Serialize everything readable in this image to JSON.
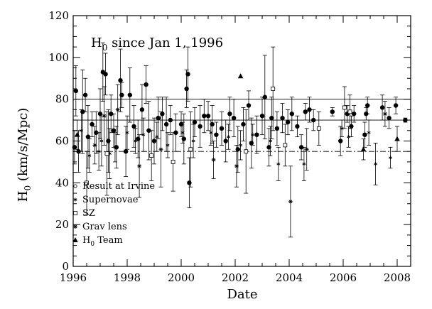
{
  "chart_data": {
    "type": "scatter",
    "title_prefix": "H",
    "title_sub": "0",
    "title_suffix": " since Jan 1, 1996",
    "xlabel": "Date",
    "ylabel_prefix": "H",
    "ylabel_sub": "0",
    "ylabel_suffix": " (km/s/Mpc)",
    "xlim": [
      1996,
      2008.5
    ],
    "ylim": [
      0,
      120
    ],
    "x_ticks": [
      1996,
      1998,
      2000,
      2002,
      2004,
      2006,
      2008
    ],
    "x_tick_labels": [
      "1996",
      "1998",
      "2000",
      "2002",
      "2004",
      "2006",
      "2008"
    ],
    "y_ticks": [
      0,
      20,
      40,
      60,
      80,
      100,
      120
    ],
    "y_tick_labels": [
      "0",
      "20",
      "40",
      "60",
      "80",
      "100",
      "120"
    ],
    "reference_lines": [
      {
        "style": "solid",
        "y": [
          80,
          80
        ]
      },
      {
        "style": "solid",
        "y": [
          70,
          70
        ]
      },
      {
        "style": "dashdot",
        "y": [
          55,
          55
        ]
      }
    ],
    "legend_position": "lower-left",
    "legend": [
      {
        "marker": "open-circle",
        "label": "Result at Irvine"
      },
      {
        "marker": "asterisk",
        "label": "Supernovae"
      },
      {
        "marker": "open-square",
        "label": "SZ"
      },
      {
        "marker": "star",
        "label": "Grav lens"
      },
      {
        "marker": "triangle",
        "label_prefix": "H",
        "label_sub": "0",
        "label_suffix": " Team"
      }
    ],
    "series": [
      {
        "marker": "filled-circle",
        "points": [
          {
            "x": 1996.05,
            "y": 57,
            "err": 8
          },
          {
            "x": 1996.1,
            "y": 84,
            "err": 12
          },
          {
            "x": 1996.2,
            "y": 55,
            "err": 10
          },
          {
            "x": 1996.35,
            "y": 74,
            "err": 20
          },
          {
            "x": 1996.45,
            "y": 82,
            "err": 8
          },
          {
            "x": 1996.55,
            "y": 62,
            "err": 15
          },
          {
            "x": 1996.7,
            "y": 68,
            "err": 6
          },
          {
            "x": 1996.85,
            "y": 64,
            "err": 10
          },
          {
            "x": 1997.0,
            "y": 73,
            "err": 12
          },
          {
            "x": 1997.1,
            "y": 93,
            "err": 14
          },
          {
            "x": 1997.2,
            "y": 92,
            "err": 10
          },
          {
            "x": 1997.3,
            "y": 60,
            "err": 15
          },
          {
            "x": 1997.4,
            "y": 73,
            "err": 9
          },
          {
            "x": 1997.5,
            "y": 65,
            "err": 8
          },
          {
            "x": 1997.6,
            "y": 57,
            "err": 10
          },
          {
            "x": 1997.75,
            "y": 89,
            "err": 15
          },
          {
            "x": 1997.8,
            "y": 82,
            "err": 6
          },
          {
            "x": 1997.95,
            "y": 55,
            "err": 12
          },
          {
            "x": 1998.1,
            "y": 82,
            "err": 13
          },
          {
            "x": 1998.25,
            "y": 67,
            "err": 10
          },
          {
            "x": 1998.4,
            "y": 61,
            "err": 9
          },
          {
            "x": 1998.55,
            "y": 75,
            "err": 12
          },
          {
            "x": 1998.7,
            "y": 87,
            "err": 9
          },
          {
            "x": 1998.8,
            "y": 65,
            "err": 14
          },
          {
            "x": 1999.0,
            "y": 60,
            "err": 11
          },
          {
            "x": 1999.15,
            "y": 71,
            "err": 10
          },
          {
            "x": 1999.3,
            "y": 73,
            "err": 8
          },
          {
            "x": 1999.45,
            "y": 68,
            "err": 13
          },
          {
            "x": 1999.6,
            "y": 70,
            "err": 7
          },
          {
            "x": 1999.8,
            "y": 64,
            "err": 9
          },
          {
            "x": 2000.0,
            "y": 68,
            "err": 6
          },
          {
            "x": 2000.1,
            "y": 61,
            "err": 12
          },
          {
            "x": 2000.2,
            "y": 85,
            "err": 9
          },
          {
            "x": 2000.25,
            "y": 92,
            "err": 13
          },
          {
            "x": 2000.3,
            "y": 40,
            "err": 12
          },
          {
            "x": 2000.5,
            "y": 69,
            "err": 7
          },
          {
            "x": 2000.7,
            "y": 67,
            "err": 10
          },
          {
            "x": 2000.85,
            "y": 72,
            "err": 8
          },
          {
            "x": 2001.0,
            "y": 72,
            "err": 7
          },
          {
            "x": 2001.15,
            "y": 68,
            "err": 9
          },
          {
            "x": 2001.3,
            "y": 63,
            "err": 6
          },
          {
            "x": 2001.5,
            "y": 66,
            "err": 8
          },
          {
            "x": 2001.65,
            "y": 60,
            "err": 10
          },
          {
            "x": 2001.8,
            "y": 73,
            "err": 8
          },
          {
            "x": 2001.95,
            "y": 71,
            "err": 9
          },
          {
            "x": 2002.1,
            "y": 56,
            "err": 11
          },
          {
            "x": 2002.3,
            "y": 68,
            "err": 8
          },
          {
            "x": 2002.5,
            "y": 77,
            "err": 7
          },
          {
            "x": 2002.6,
            "y": 59,
            "err": 12
          },
          {
            "x": 2002.8,
            "y": 63,
            "err": 9
          },
          {
            "x": 2003.0,
            "y": 72,
            "err": 9
          },
          {
            "x": 2003.1,
            "y": 81,
            "err": 20
          },
          {
            "x": 2003.25,
            "y": 57,
            "err": 9
          },
          {
            "x": 2003.35,
            "y": 71,
            "err": 10
          },
          {
            "x": 2003.55,
            "y": 66,
            "err": 8
          },
          {
            "x": 2003.75,
            "y": 71,
            "err": 7
          },
          {
            "x": 2003.95,
            "y": 69,
            "err": 6
          },
          {
            "x": 2004.1,
            "y": 73,
            "err": 8
          },
          {
            "x": 2004.3,
            "y": 67,
            "err": 5
          },
          {
            "x": 2004.45,
            "y": 57,
            "err": 6
          },
          {
            "x": 2004.6,
            "y": 74,
            "err": 4
          },
          {
            "x": 2004.75,
            "y": 75,
            "err": 6
          },
          {
            "x": 2004.9,
            "y": 70,
            "err": 5
          },
          {
            "x": 2005.6,
            "y": 74,
            "err": 2
          },
          {
            "x": 2005.9,
            "y": 60,
            "err": 7
          },
          {
            "x": 2006.15,
            "y": 73,
            "err": 4
          },
          {
            "x": 2006.3,
            "y": 67,
            "err": 5
          },
          {
            "x": 2006.4,
            "y": 73,
            "err": 4
          },
          {
            "x": 2006.8,
            "y": 63,
            "err": 6
          },
          {
            "x": 2006.85,
            "y": 73,
            "err": 3
          },
          {
            "x": 2006.9,
            "y": 77,
            "err": 4
          },
          {
            "x": 2007.45,
            "y": 76,
            "err": 6
          },
          {
            "x": 2007.7,
            "y": 71,
            "err": 5
          },
          {
            "x": 2007.95,
            "y": 77,
            "err": 4
          },
          {
            "x": 2008.3,
            "y": 70,
            "err": 1
          }
        ]
      },
      {
        "marker": "asterisk",
        "points": [
          {
            "x": 1996.3,
            "y": 65,
            "err": 10
          },
          {
            "x": 1996.6,
            "y": 53,
            "err": 8
          },
          {
            "x": 1996.95,
            "y": 55,
            "err": 9
          },
          {
            "x": 1997.05,
            "y": 60,
            "err": 12
          },
          {
            "x": 1997.35,
            "y": 54,
            "err": 12
          },
          {
            "x": 1997.55,
            "y": 57,
            "err": 7
          },
          {
            "x": 1998.0,
            "y": 64,
            "err": 8
          },
          {
            "x": 1998.3,
            "y": 60,
            "err": 6
          },
          {
            "x": 1998.6,
            "y": 63,
            "err": 8
          },
          {
            "x": 1999.1,
            "y": 62,
            "err": 7
          },
          {
            "x": 1999.5,
            "y": 58,
            "err": 6
          },
          {
            "x": 2000.05,
            "y": 64,
            "err": 5
          },
          {
            "x": 2000.45,
            "y": 60,
            "err": 8
          },
          {
            "x": 2001.1,
            "y": 64,
            "err": 6
          },
          {
            "x": 2001.75,
            "y": 62,
            "err": 6
          },
          {
            "x": 2002.2,
            "y": 58,
            "err": 7
          },
          {
            "x": 2002.65,
            "y": 63,
            "err": 5
          },
          {
            "x": 2003.3,
            "y": 60,
            "err": 7
          },
          {
            "x": 2003.6,
            "y": 49,
            "err": 8
          },
          {
            "x": 2004.55,
            "y": 49,
            "err": 8
          },
          {
            "x": 2005.95,
            "y": 66,
            "err": 4
          },
          {
            "x": 2006.2,
            "y": 62,
            "err": 5
          },
          {
            "x": 2006.95,
            "y": 64,
            "err": 6
          },
          {
            "x": 2007.2,
            "y": 49,
            "err": 10
          },
          {
            "x": 2007.75,
            "y": 52,
            "err": 5
          }
        ]
      },
      {
        "marker": "open-square",
        "points": [
          {
            "x": 1996.5,
            "y": 40,
            "err": 15
          },
          {
            "x": 1997.25,
            "y": 54,
            "err": 20
          },
          {
            "x": 1998.9,
            "y": 53,
            "err": 12
          },
          {
            "x": 1999.7,
            "y": 50,
            "err": 14
          },
          {
            "x": 2000.35,
            "y": 56,
            "err": 18
          },
          {
            "x": 2002.4,
            "y": 55,
            "err": 20
          },
          {
            "x": 2003.4,
            "y": 85,
            "err": 20
          },
          {
            "x": 2003.85,
            "y": 58,
            "err": 10
          },
          {
            "x": 2005.1,
            "y": 66,
            "err": 8
          },
          {
            "x": 2006.05,
            "y": 76,
            "err": 10
          },
          {
            "x": 2006.25,
            "y": 74,
            "err": 8
          }
        ]
      },
      {
        "marker": "star",
        "points": [
          {
            "x": 1996.8,
            "y": 58,
            "err": 9
          },
          {
            "x": 1997.15,
            "y": 72,
            "err": 14
          },
          {
            "x": 1997.65,
            "y": 75,
            "err": 12
          },
          {
            "x": 1998.45,
            "y": 48,
            "err": 15
          },
          {
            "x": 1999.25,
            "y": 56,
            "err": 18
          },
          {
            "x": 2001.2,
            "y": 51,
            "err": 9
          },
          {
            "x": 2002.05,
            "y": 48,
            "err": 10
          },
          {
            "x": 2004.05,
            "y": 31,
            "err": 17
          },
          {
            "x": 2004.65,
            "y": 56,
            "err": 10
          },
          {
            "x": 2007.55,
            "y": 73,
            "err": 6
          }
        ]
      },
      {
        "marker": "triangle",
        "points": [
          {
            "x": 2002.2,
            "y": 91,
            "err": 0
          },
          {
            "x": 2006.75,
            "y": 56,
            "err": 5
          },
          {
            "x": 2008.0,
            "y": 61,
            "err": 6
          },
          {
            "x": 1996.15,
            "y": 63,
            "err": 7
          }
        ]
      }
    ]
  }
}
